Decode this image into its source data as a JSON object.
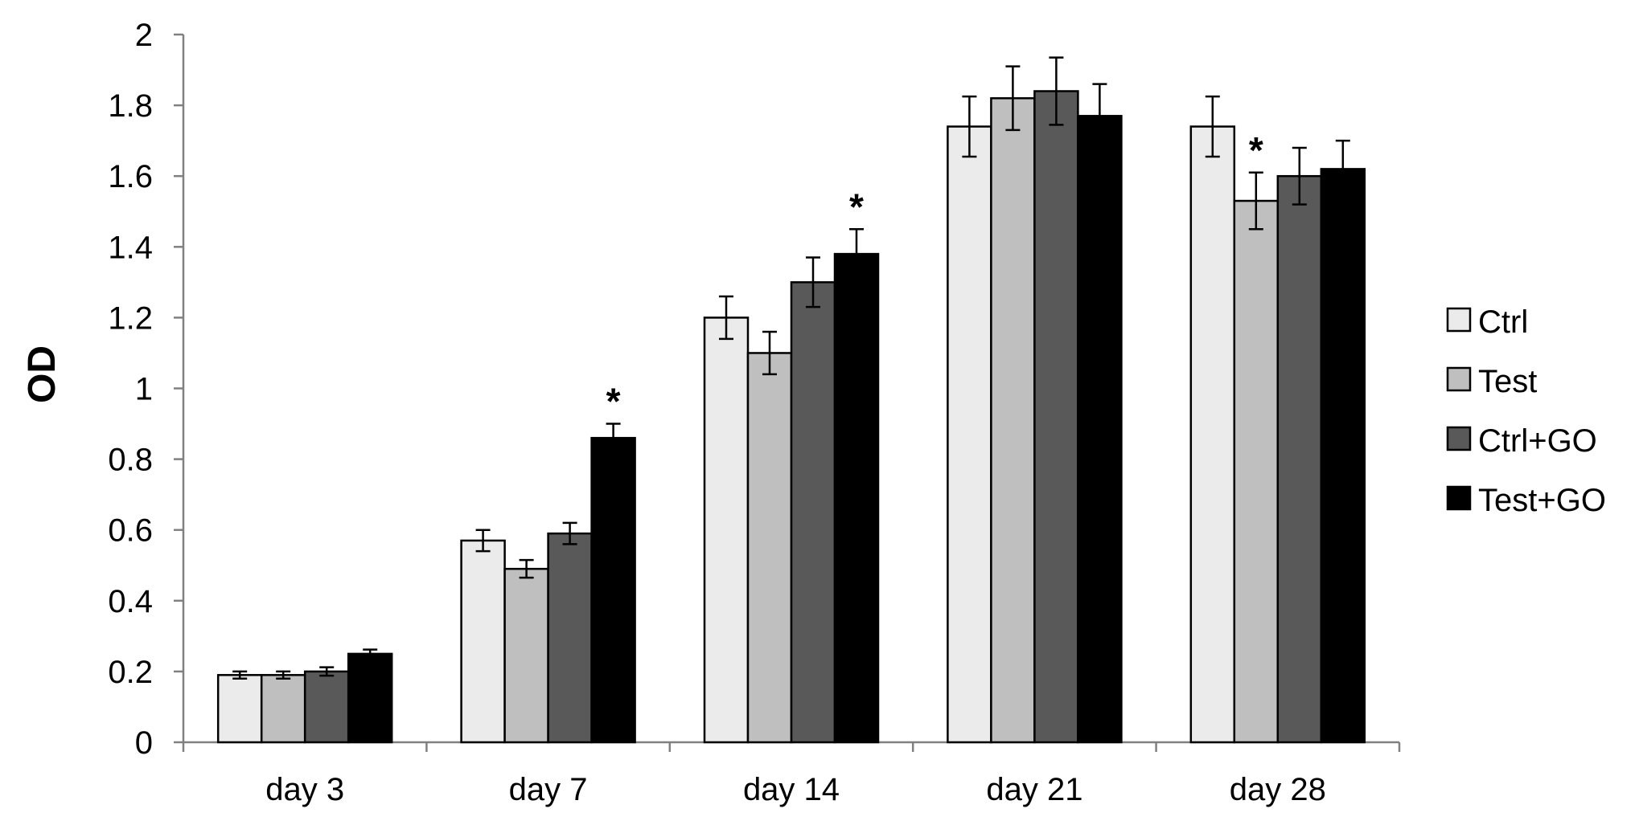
{
  "chart_data": {
    "type": "bar",
    "title": "",
    "xlabel": "",
    "ylabel": "OD",
    "ylim": [
      0,
      2
    ],
    "yticks": [
      0,
      0.2,
      0.4,
      0.6,
      0.8,
      1,
      1.2,
      1.4,
      1.6,
      1.8,
      2
    ],
    "ytick_labels": [
      "0",
      "0.2",
      "0.4",
      "0.6",
      "0.8",
      "1",
      "1.2",
      "1.4",
      "1.6",
      "1.8",
      "2"
    ],
    "grid": false,
    "legend_position": "right",
    "categories": [
      "day 3",
      "day 7",
      "day 14",
      "day 21",
      "day 28"
    ],
    "series": [
      {
        "name": "Ctrl",
        "color": "#ebebeb",
        "values": [
          0.19,
          0.57,
          1.2,
          1.74,
          1.74
        ],
        "errors": [
          0.01,
          0.03,
          0.06,
          0.085,
          0.085
        ]
      },
      {
        "name": "Test",
        "color": "#bfbfbf",
        "values": [
          0.19,
          0.49,
          1.1,
          1.82,
          1.53
        ],
        "errors": [
          0.01,
          0.025,
          0.06,
          0.09,
          0.08
        ]
      },
      {
        "name": "Ctrl+GO",
        "color": "#595959",
        "values": [
          0.2,
          0.59,
          1.3,
          1.84,
          1.6
        ],
        "errors": [
          0.012,
          0.03,
          0.07,
          0.095,
          0.08
        ]
      },
      {
        "name": "Test+GO",
        "color": "#000000",
        "values": [
          0.25,
          0.86,
          1.38,
          1.77,
          1.62
        ],
        "errors": [
          0.012,
          0.04,
          0.07,
          0.09,
          0.08
        ]
      }
    ],
    "annotations": [
      {
        "text": "*",
        "category": "day 7",
        "series": "Test+GO"
      },
      {
        "text": "*",
        "category": "day 14",
        "series": "Test+GO"
      },
      {
        "text": "*",
        "category": "day 28",
        "series": "Test"
      }
    ]
  }
}
